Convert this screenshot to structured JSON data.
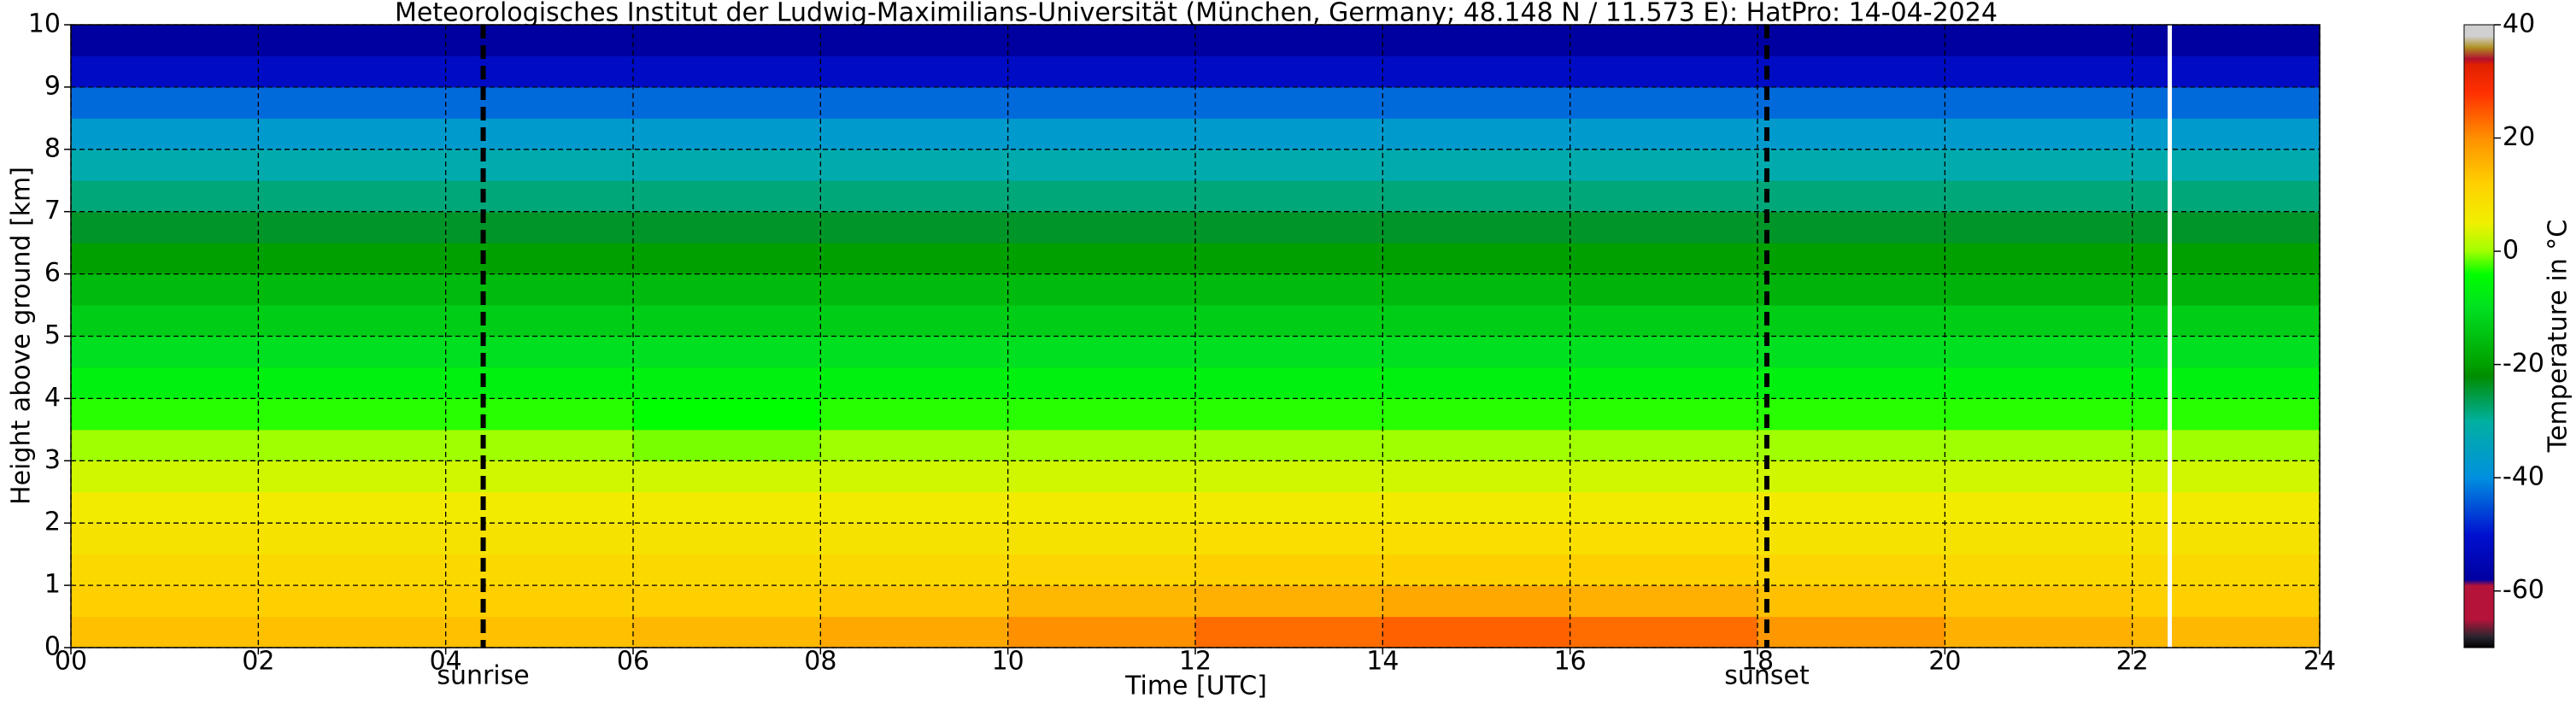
{
  "chart_data": {
    "type": "heatmap",
    "title": "Meteorologisches Institut der Ludwig-Maximilians-Universität (München, Germany; 48.148 N / 11.573 E):    HatPro: 14-04-2024",
    "x_label": "Time [UTC]",
    "y_label": "Height above ground [km]",
    "colorbar_label": "Temperature in °C",
    "x": [
      0,
      2,
      4,
      6,
      8,
      10,
      12,
      14,
      16,
      18,
      20,
      22,
      24
    ],
    "y": [
      0,
      0.5,
      1,
      1.5,
      2,
      2.5,
      3,
      3.5,
      4,
      4.5,
      5,
      5.5,
      6,
      6.5,
      7,
      7.5,
      8,
      8.5,
      9,
      9.5,
      10
    ],
    "values": [
      [
        14,
        14,
        14,
        15,
        17,
        20,
        23,
        24,
        23,
        19,
        16,
        15
      ],
      [
        12,
        12,
        12,
        12,
        13,
        15,
        16,
        17,
        16,
        14,
        13,
        12
      ],
      [
        10,
        10,
        10,
        10,
        10,
        11,
        12,
        12,
        12,
        11,
        10,
        10
      ],
      [
        8,
        8,
        8,
        8,
        8,
        8,
        9,
        9,
        9,
        8,
        8,
        8
      ],
      [
        6,
        6,
        6,
        6,
        6,
        6,
        6,
        6,
        6,
        6,
        6,
        6
      ],
      [
        3,
        3,
        3,
        3,
        3,
        3,
        3,
        3,
        3,
        3,
        3,
        3
      ],
      [
        0,
        0,
        0,
        -1,
        0,
        0,
        0,
        0,
        0,
        0,
        0,
        0
      ],
      [
        -3,
        -3,
        -3,
        -4,
        -3,
        -3,
        -3,
        -3,
        -3,
        -3,
        -3,
        -3
      ],
      [
        -7,
        -7,
        -7,
        -7,
        -7,
        -7,
        -7,
        -7,
        -7,
        -7,
        -7,
        -7
      ],
      [
        -10,
        -10,
        -10,
        -10,
        -10,
        -10,
        -10,
        -10,
        -10,
        -10,
        -10,
        -10
      ],
      [
        -13,
        -13,
        -13,
        -13,
        -13,
        -13,
        -13,
        -13,
        -13,
        -13,
        -13,
        -13
      ],
      [
        -16,
        -16,
        -16,
        -16,
        -16,
        -16,
        -16,
        -16,
        -17,
        -17,
        -17,
        -17
      ],
      [
        -20,
        -20,
        -20,
        -20,
        -20,
        -20,
        -20,
        -20,
        -20,
        -20,
        -20,
        -20
      ],
      [
        -24,
        -24,
        -24,
        -24,
        -24,
        -24,
        -24,
        -24,
        -24,
        -24,
        -24,
        -24
      ],
      [
        -28,
        -28,
        -28,
        -28,
        -28,
        -28,
        -28,
        -28,
        -28,
        -28,
        -28,
        -28
      ],
      [
        -32,
        -32,
        -32,
        -32,
        -32,
        -32,
        -32,
        -32,
        -32,
        -32,
        -32,
        -32
      ],
      [
        -37,
        -37,
        -37,
        -37,
        -37,
        -37,
        -37,
        -37,
        -37,
        -37,
        -37,
        -37
      ],
      [
        -43,
        -43,
        -43,
        -43,
        -43,
        -43,
        -43,
        -43,
        -43,
        -43,
        -43,
        -43
      ],
      [
        -52,
        -52,
        -52,
        -52,
        -52,
        -52,
        -52,
        -52,
        -52,
        -52,
        -52,
        -52
      ],
      [
        -58,
        -58,
        -58,
        -58,
        -58,
        -58,
        -58,
        -58,
        -58,
        -58,
        -58,
        -58
      ]
    ],
    "xlim": [
      0,
      24
    ],
    "ylim": [
      0,
      10
    ],
    "xticks": [
      {
        "value": 0,
        "label": "00"
      },
      {
        "value": 2,
        "label": "02"
      },
      {
        "value": 4,
        "label": "04"
      },
      {
        "value": 6,
        "label": "06"
      },
      {
        "value": 8,
        "label": "08"
      },
      10,
      12,
      14,
      16,
      18,
      20,
      22,
      24
    ],
    "yticks": [
      0,
      1,
      2,
      3,
      4,
      5,
      6,
      7,
      8,
      9,
      10
    ],
    "grid": true,
    "clim": [
      -70,
      40
    ],
    "cticks": [
      -60,
      -40,
      -20,
      0,
      20,
      40
    ],
    "colorscale": [
      [
        -70,
        "#000000"
      ],
      [
        -68,
        "#2b2630"
      ],
      [
        -65,
        "#b5133a"
      ],
      [
        -59,
        "#b5133a"
      ],
      [
        -58,
        "#0000a0"
      ],
      [
        -50,
        "#0010d0"
      ],
      [
        -40,
        "#0090e0"
      ],
      [
        -30,
        "#00b0a0"
      ],
      [
        -22,
        "#008c00"
      ],
      [
        -20,
        "#00a000"
      ],
      [
        -10,
        "#00e020"
      ],
      [
        -4,
        "#00ff00"
      ],
      [
        0,
        "#a0ff00"
      ],
      [
        5,
        "#f0f000"
      ],
      [
        12,
        "#ffd000"
      ],
      [
        20,
        "#ff9000"
      ],
      [
        28,
        "#ff3000"
      ],
      [
        33,
        "#e02000"
      ],
      [
        34,
        "#b01030"
      ],
      [
        36,
        "#b09020"
      ],
      [
        38,
        "#d0d0d0"
      ],
      [
        40,
        "#d0d0d0"
      ]
    ],
    "annotations": [
      {
        "text": "sunrise",
        "x": 4.4
      },
      {
        "text": "sunset",
        "x": 18.1
      }
    ],
    "gap": 22.4
  }
}
